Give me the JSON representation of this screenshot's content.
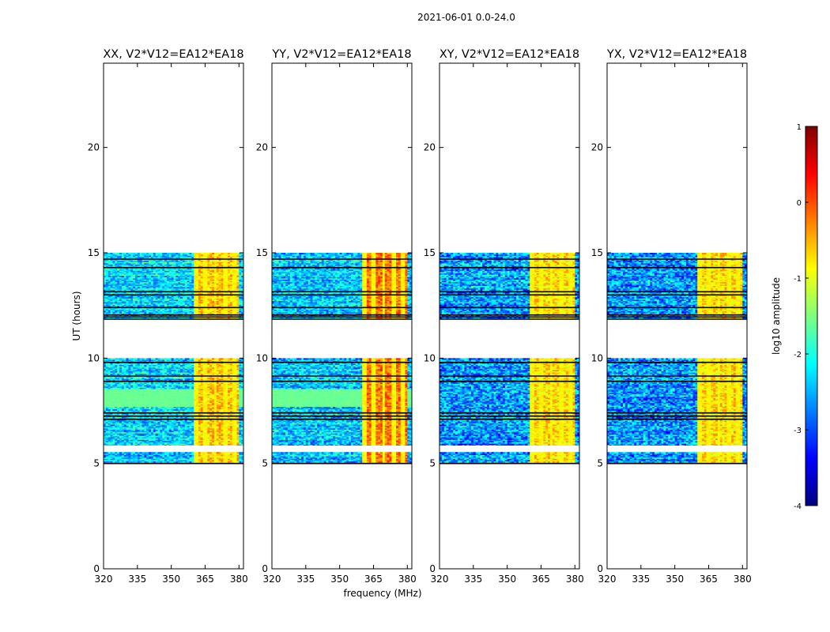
{
  "chart_data": {
    "type": "heatmap",
    "suptitle": "2021-06-01 0.0-24.0",
    "xlabel": "frequency (MHz)",
    "ylabel": "UT (hours)",
    "xlim": [
      320,
      382
    ],
    "ylim": [
      0,
      24
    ],
    "xticks": [
      320,
      335,
      350,
      365,
      380
    ],
    "yticks": [
      0,
      5,
      10,
      15,
      20
    ],
    "colorbar": {
      "label": "log10 amplitude",
      "range": [
        -4,
        1
      ],
      "ticks": [
        1,
        0,
        -1,
        -2,
        -3,
        -4
      ],
      "colormap": [
        "#00007f",
        "#0000ff",
        "#007fff",
        "#00ffff",
        "#7fff7f",
        "#ffff00",
        "#ff7f00",
        "#ff0000",
        "#7f0000"
      ]
    },
    "time_blocks": [
      {
        "start": 5.0,
        "end": 10.0
      },
      {
        "start": 11.9,
        "end": 15.0
      }
    ],
    "white_gaps": [
      [
        5.55,
        5.85
      ]
    ],
    "black_lines": [
      5.0,
      7.1,
      7.25,
      7.4,
      8.9,
      9.15,
      9.8,
      11.85,
      11.95,
      12.05,
      12.4,
      13.0,
      13.15,
      14.3,
      14.7
    ],
    "rfi_band": {
      "start": 360,
      "end": 380,
      "stripes": [
        361,
        365,
        369.5,
        374,
        378
      ]
    },
    "panels": [
      {
        "title": "XX, V2*V12=EA12*EA18",
        "base_level": -2.3,
        "noise": 0.6,
        "band_level": -0.6,
        "uniform_span": [
          7.7,
          8.55
        ],
        "uniform_level": -1.6
      },
      {
        "title": "YY, V2*V12=EA12*EA18",
        "base_level": -2.4,
        "noise": 0.6,
        "band_level": -0.2,
        "uniform_span": [
          7.7,
          8.55
        ],
        "uniform_level": -1.6
      },
      {
        "title": "XY, V2*V12=EA12*EA18",
        "base_level": -2.6,
        "noise": 0.7,
        "band_level": -0.7,
        "uniform_span": null,
        "uniform_level": null
      },
      {
        "title": "YX, V2*V12=EA12*EA18",
        "base_level": -2.6,
        "noise": 0.7,
        "band_level": -0.7,
        "uniform_span": null,
        "uniform_level": null
      }
    ]
  }
}
